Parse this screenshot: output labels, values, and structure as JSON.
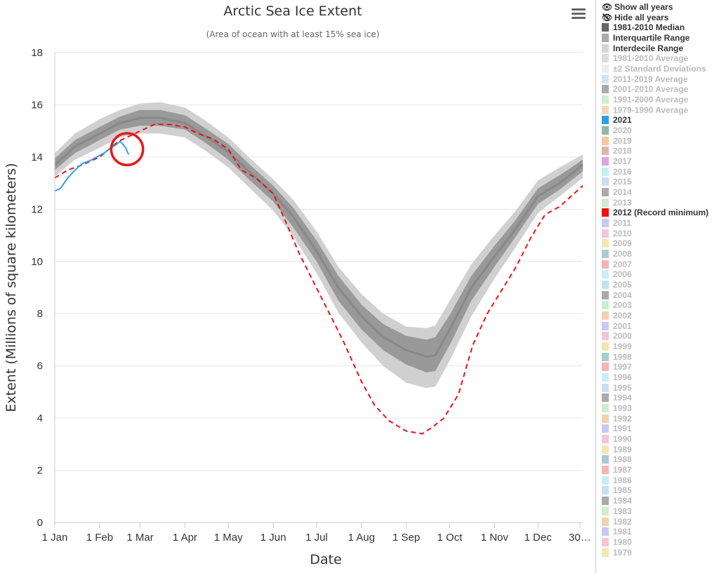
{
  "chart_data": {
    "type": "line",
    "title": "Arctic Sea Ice Extent",
    "subtitle": "(Area of ocean with at least 15% sea ice)",
    "xlabel": "Date",
    "ylabel": "Extent (Millions of square kilometers)",
    "ylim": [
      0,
      18
    ],
    "yticks": [
      0,
      2,
      4,
      6,
      8,
      10,
      12,
      14,
      16,
      18
    ],
    "xlim": [
      1,
      366
    ],
    "xticks": [
      {
        "label": "1 Jan",
        "doy": 1
      },
      {
        "label": "1 Feb",
        "doy": 32
      },
      {
        "label": "1 Mar",
        "doy": 60
      },
      {
        "label": "1 Apr",
        "doy": 91
      },
      {
        "label": "1 May",
        "doy": 121
      },
      {
        "label": "1 Jun",
        "doy": 152
      },
      {
        "label": "1 Jul",
        "doy": 182
      },
      {
        "label": "1 Aug",
        "doy": 213
      },
      {
        "label": "1 Sep",
        "doy": 244
      },
      {
        "label": "1 Oct",
        "doy": 274
      },
      {
        "label": "1 Nov",
        "doy": 305
      },
      {
        "label": "1 Dec",
        "doy": 335
      },
      {
        "label": "30…",
        "doy": 364
      }
    ],
    "grid": true,
    "legend_placement": "right",
    "colors": {
      "median": "#888888",
      "interquartile": "#999999",
      "interdecile": "#d0d0d0",
      "year_2021": "#2f9fe3",
      "year_2012": "#ee1111",
      "annotation_circle": "#e31b1b"
    },
    "doy": [
      1,
      15,
      32,
      46,
      60,
      74,
      91,
      105,
      121,
      136,
      152,
      166,
      182,
      197,
      213,
      228,
      244,
      258,
      264,
      274,
      289,
      305,
      319,
      335,
      350,
      366
    ],
    "median": [
      13.7,
      14.4,
      14.9,
      15.3,
      15.5,
      15.5,
      15.3,
      14.8,
      14.2,
      13.4,
      12.6,
      11.7,
      10.4,
      9.0,
      7.9,
      7.1,
      6.6,
      6.35,
      6.4,
      7.4,
      9.0,
      10.2,
      11.2,
      12.5,
      13.0,
      13.7
    ],
    "iqr_low": [
      13.5,
      14.15,
      14.65,
      15.05,
      15.2,
      15.2,
      15.05,
      14.55,
      13.9,
      13.1,
      12.3,
      11.3,
      10.0,
      8.5,
      7.4,
      6.6,
      6.05,
      5.75,
      5.8,
      6.8,
      8.5,
      9.8,
      10.9,
      12.2,
      12.75,
      13.45
    ],
    "iqr_high": [
      13.95,
      14.65,
      15.15,
      15.55,
      15.8,
      15.8,
      15.6,
      15.1,
      14.5,
      13.7,
      12.9,
      12.05,
      10.8,
      9.45,
      8.35,
      7.6,
      7.15,
      7.0,
      7.1,
      7.95,
      9.45,
      10.6,
      11.55,
      12.8,
      13.3,
      13.9
    ],
    "idr_low": [
      13.25,
      13.9,
      14.35,
      14.75,
      14.9,
      14.9,
      14.75,
      14.25,
      13.6,
      12.8,
      11.95,
      10.95,
      9.55,
      8.05,
      6.9,
      6.0,
      5.35,
      5.15,
      5.2,
      6.2,
      7.9,
      9.35,
      10.5,
      11.85,
      12.5,
      13.2
    ],
    "idr_high": [
      14.15,
      14.9,
      15.45,
      15.8,
      16.05,
      16.1,
      15.9,
      15.4,
      14.75,
      13.95,
      13.15,
      12.35,
      11.15,
      9.8,
      8.75,
      8.0,
      7.5,
      7.45,
      7.55,
      8.5,
      9.9,
      11.0,
      11.9,
      13.1,
      13.6,
      14.1
    ],
    "series": [
      {
        "name": "2021",
        "doy": [
          1,
          5,
          10,
          15,
          20,
          25,
          30,
          35,
          40,
          44,
          46,
          48,
          50,
          52
        ],
        "values": [
          12.7,
          12.8,
          13.2,
          13.5,
          13.75,
          13.85,
          14.0,
          14.15,
          14.35,
          14.5,
          14.6,
          14.5,
          14.35,
          14.1
        ]
      },
      {
        "name": "2012 (Record minimum)",
        "doy": [
          1,
          10,
          20,
          32,
          45,
          60,
          70,
          80,
          91,
          100,
          110,
          121,
          130,
          140,
          152,
          160,
          170,
          180,
          190,
          200,
          213,
          222,
          232,
          244,
          255,
          262,
          270,
          280,
          290,
          300,
          310,
          320,
          330,
          340,
          350,
          366
        ],
        "values": [
          13.2,
          13.5,
          13.7,
          14.0,
          14.6,
          15.0,
          15.25,
          15.25,
          15.15,
          14.9,
          14.7,
          14.3,
          13.5,
          13.2,
          12.6,
          11.6,
          10.3,
          9.2,
          8.1,
          7.0,
          5.4,
          4.5,
          3.9,
          3.5,
          3.4,
          3.65,
          4.0,
          4.9,
          6.8,
          8.0,
          8.9,
          9.8,
          10.9,
          11.8,
          12.1,
          12.9
        ]
      }
    ],
    "annotation": {
      "type": "circle",
      "color": "#e31b1b",
      "center_doy": 51,
      "center_value": 14.3,
      "radius_days": 11
    }
  },
  "legend": {
    "show_all": "Show all years",
    "hide_all": "Hide all years",
    "items": [
      {
        "label": "1981-2010 Median",
        "color": "#666666",
        "active": true
      },
      {
        "label": "Interquartile Range",
        "color": "#aaaaaa",
        "active": true
      },
      {
        "label": "Interdecile Range",
        "color": "#d6d6d6",
        "active": true
      },
      {
        "label": "1981-2010 Average",
        "color": "#dddddd",
        "active": false
      },
      {
        "label": "±2 Standard Deviations",
        "color": "#eeeeee",
        "active": false
      },
      {
        "label": "2011-2019 Average",
        "color": "#cfe3f5",
        "active": false
      },
      {
        "label": "2001-2010 Average",
        "color": "#aaaaaa",
        "active": false
      },
      {
        "label": "1991-2000 Average",
        "color": "#cfeecf",
        "active": false
      },
      {
        "label": "1979-1990 Average",
        "color": "#f6d6b4",
        "active": false
      },
      {
        "label": "2021",
        "color": "#2f9fe3",
        "active": true
      },
      {
        "label": "2020",
        "color": "#8fb8a8",
        "active": false
      },
      {
        "label": "2019",
        "color": "#f2c99e",
        "active": false
      },
      {
        "label": "2018",
        "color": "#dcb8a8",
        "active": false
      },
      {
        "label": "2017",
        "color": "#dba4e0",
        "active": false
      },
      {
        "label": "2016",
        "color": "#c9eef2",
        "active": false
      },
      {
        "label": "2015",
        "color": "#c8e0f5",
        "active": false
      },
      {
        "label": "2014",
        "color": "#aaaaaa",
        "active": false
      },
      {
        "label": "2013",
        "color": "#cdeecd",
        "active": false
      },
      {
        "label": "2012 (Record minimum)",
        "color": "#ee1111",
        "active": true
      },
      {
        "label": "2011",
        "color": "#c9c9f2",
        "active": false
      },
      {
        "label": "2010",
        "color": "#f4c4d8",
        "active": false
      },
      {
        "label": "2009",
        "color": "#f2e6b4",
        "active": false
      },
      {
        "label": "2008",
        "color": "#a8ccd0",
        "active": false
      },
      {
        "label": "2007",
        "color": "#f5b4b4",
        "active": false
      },
      {
        "label": "2006",
        "color": "#c9eef2",
        "active": false
      },
      {
        "label": "2005",
        "color": "#c8e0f5",
        "active": false
      },
      {
        "label": "2004",
        "color": "#aaaaaa",
        "active": false
      },
      {
        "label": "2003",
        "color": "#cdeecd",
        "active": false
      },
      {
        "label": "2002",
        "color": "#f2d2b0",
        "active": false
      },
      {
        "label": "2001",
        "color": "#c9c9f2",
        "active": false
      },
      {
        "label": "2000",
        "color": "#f4c4d8",
        "active": false
      },
      {
        "label": "1999",
        "color": "#f2e6b4",
        "active": false
      },
      {
        "label": "1998",
        "color": "#a8ccd0",
        "active": false
      },
      {
        "label": "1997",
        "color": "#f5b4b4",
        "active": false
      },
      {
        "label": "1996",
        "color": "#c9eef2",
        "active": false
      },
      {
        "label": "1995",
        "color": "#c8e0f5",
        "active": false
      },
      {
        "label": "1994",
        "color": "#aaaaaa",
        "active": false
      },
      {
        "label": "1993",
        "color": "#cdeecd",
        "active": false
      },
      {
        "label": "1992",
        "color": "#f2d2b0",
        "active": false
      },
      {
        "label": "1991",
        "color": "#c9c9f2",
        "active": false
      },
      {
        "label": "1990",
        "color": "#f4c4d8",
        "active": false
      },
      {
        "label": "1989",
        "color": "#f2e6b4",
        "active": false
      },
      {
        "label": "1988",
        "color": "#a8ccd0",
        "active": false
      },
      {
        "label": "1987",
        "color": "#f5b4b4",
        "active": false
      },
      {
        "label": "1986",
        "color": "#c9eef2",
        "active": false
      },
      {
        "label": "1985",
        "color": "#c8e0f5",
        "active": false
      },
      {
        "label": "1984",
        "color": "#aaaaaa",
        "active": false
      },
      {
        "label": "1983",
        "color": "#cdeecd",
        "active": false
      },
      {
        "label": "1982",
        "color": "#f2d2b0",
        "active": false
      },
      {
        "label": "1981",
        "color": "#c9c9f2",
        "active": false
      },
      {
        "label": "1980",
        "color": "#f4c4d8",
        "active": false
      },
      {
        "label": "1979",
        "color": "#f2e6b4",
        "active": false
      }
    ]
  },
  "menu": {
    "icon": "hamburger-menu-icon"
  }
}
